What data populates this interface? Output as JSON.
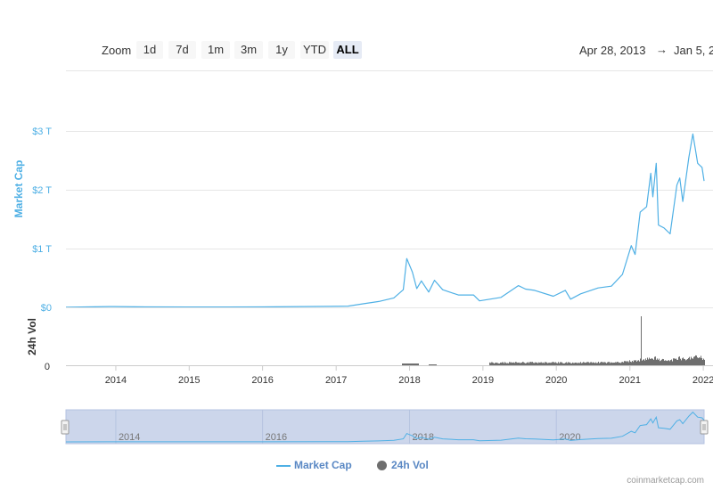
{
  "toolbar": {
    "zoom_label": "Zoom",
    "buttons": [
      "1d",
      "7d",
      "1m",
      "3m",
      "1y",
      "YTD",
      "ALL"
    ],
    "active_button": "ALL",
    "date_from": "Apr 28, 2013",
    "date_arrow": "→",
    "date_to": "Jan 5, 2"
  },
  "colors": {
    "market_cap": "#4fb0e5",
    "volume": "#6e6e6e",
    "navigator_fill": "#ccd6eb"
  },
  "chart_data": {
    "type": "line",
    "x_axis": {
      "tick_labels": [
        "2014",
        "2015",
        "2016",
        "2017",
        "2018",
        "2019",
        "2020",
        "2021",
        "2022"
      ]
    },
    "market_cap": {
      "ylabel": "Market Cap",
      "y_tick_labels": [
        "$3 T",
        "$2 T",
        "$1 T",
        "$0"
      ],
      "ylim": [
        0,
        3
      ],
      "unit": "T USD",
      "x": [
        "2013-04-28",
        "2013-12-01",
        "2014-06-01",
        "2015-01-01",
        "2016-01-01",
        "2016-12-01",
        "2017-03-01",
        "2017-05-15",
        "2017-08-01",
        "2017-10-15",
        "2017-12-01",
        "2017-12-18",
        "2018-01-15",
        "2018-02-06",
        "2018-03-01",
        "2018-04-06",
        "2018-05-05",
        "2018-06-15",
        "2018-09-01",
        "2018-11-15",
        "2018-12-15",
        "2019-04-01",
        "2019-06-26",
        "2019-08-01",
        "2019-09-15",
        "2019-12-17",
        "2020-02-15",
        "2020-03-12",
        "2020-05-01",
        "2020-07-27",
        "2020-10-01",
        "2020-11-25",
        "2021-01-08",
        "2021-01-27",
        "2021-02-21",
        "2021-03-25",
        "2021-04-15",
        "2021-04-25",
        "2021-05-12",
        "2021-05-23",
        "2021-06-20",
        "2021-07-20",
        "2021-08-23",
        "2021-09-06",
        "2021-09-21",
        "2021-10-21",
        "2021-11-10",
        "2021-12-04",
        "2021-12-26",
        "2022-01-05"
      ],
      "values": [
        0.0015,
        0.013,
        0.008,
        0.006,
        0.007,
        0.017,
        0.021,
        0.06,
        0.1,
        0.16,
        0.3,
        0.83,
        0.6,
        0.32,
        0.45,
        0.26,
        0.46,
        0.3,
        0.21,
        0.21,
        0.11,
        0.17,
        0.37,
        0.31,
        0.29,
        0.19,
        0.29,
        0.14,
        0.23,
        0.33,
        0.36,
        0.56,
        1.05,
        0.9,
        1.62,
        1.71,
        2.28,
        1.88,
        2.45,
        1.4,
        1.35,
        1.25,
        2.08,
        2.2,
        1.8,
        2.55,
        2.95,
        2.45,
        2.38,
        2.15
      ]
    },
    "volume": {
      "ylabel": "24h Vol",
      "y_tick_labels": [
        "0"
      ],
      "spike_dates": [
        "2021-02-23"
      ]
    },
    "navigator": {
      "tick_labels": [
        "2014",
        "2016",
        "2018",
        "2020"
      ]
    },
    "legend": {
      "market_cap_label": "Market Cap",
      "volume_label": "24h Vol",
      "position": "bottom-center"
    },
    "credit": "coinmarketcap.com"
  }
}
